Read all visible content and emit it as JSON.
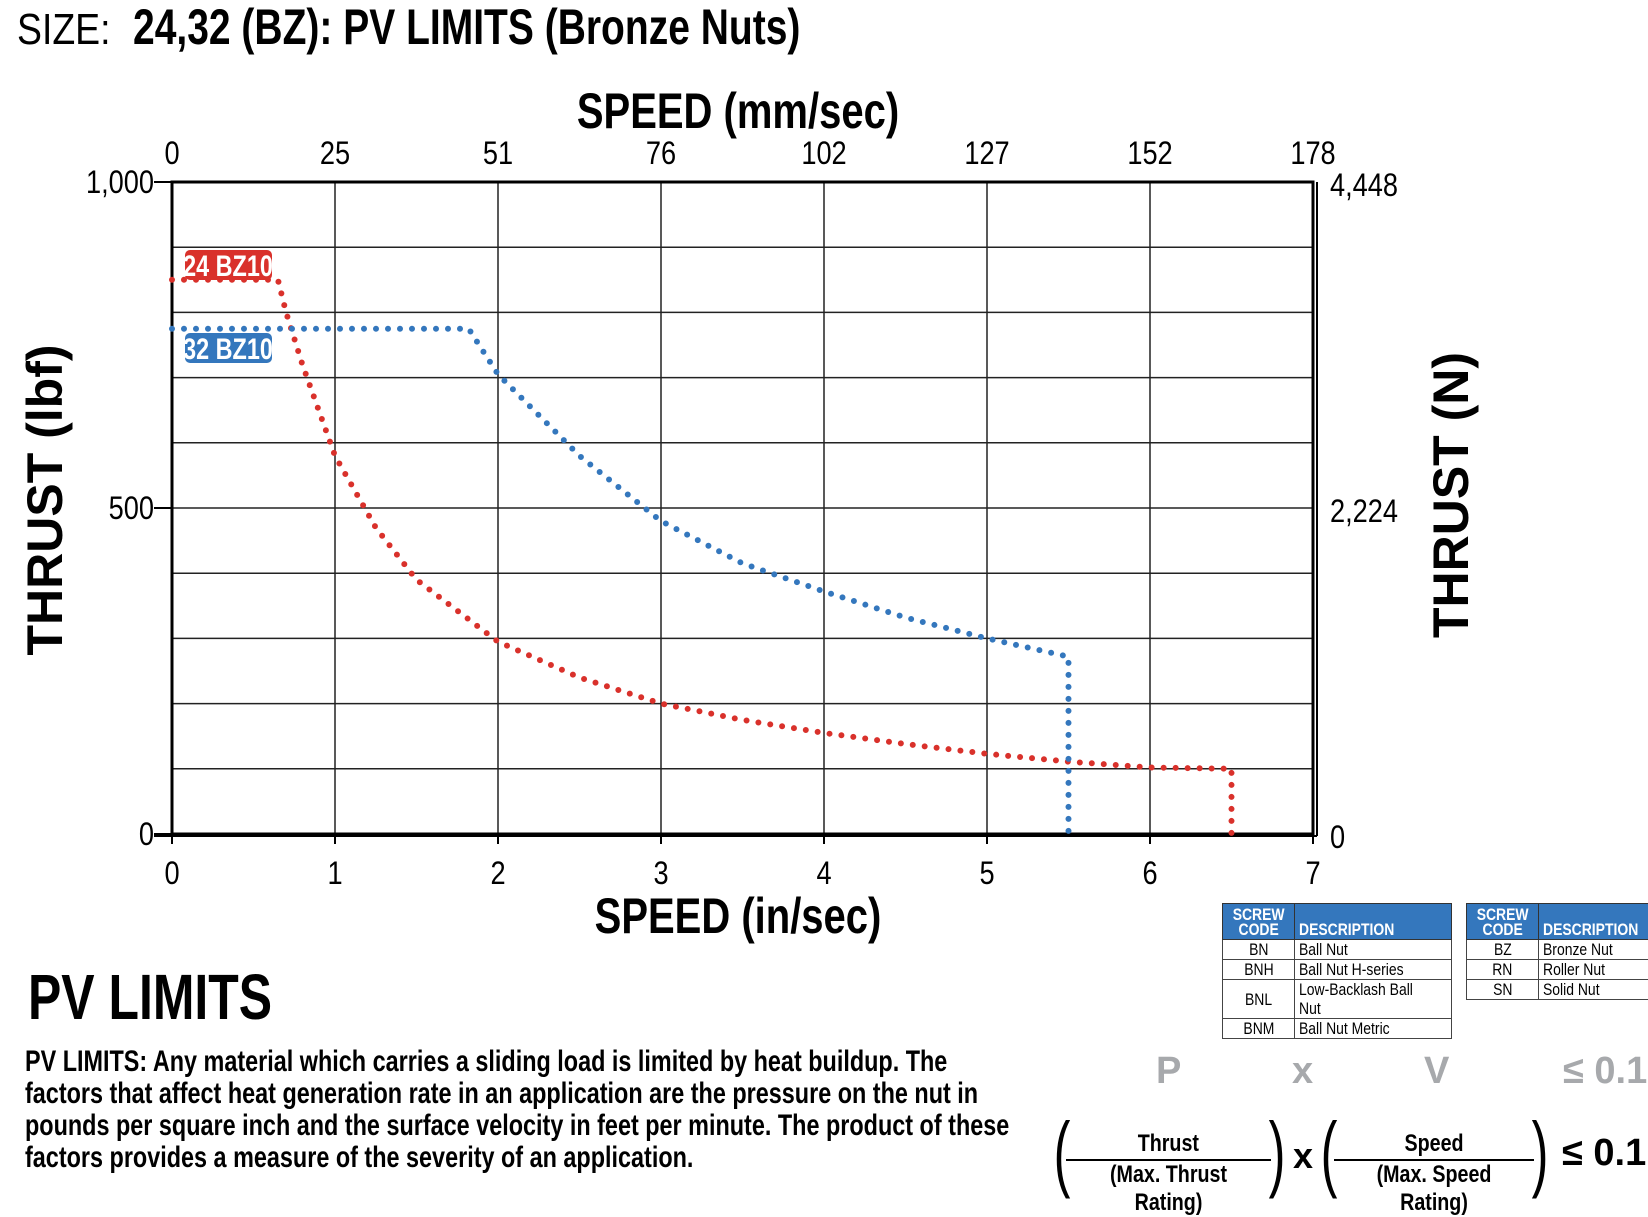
{
  "header": {
    "prefix": "SIZE:",
    "title": "24,32 (BZ): PV LIMITS (Bronze Nuts)"
  },
  "chart_data": {
    "type": "line",
    "title": "24,32 (BZ): PV LIMITS (Bronze Nuts)",
    "xlabel": "SPEED (in/sec)",
    "x2label": "SPEED (mm/sec)",
    "ylabel": "THRUST (lbf)",
    "y2label": "THRUST (N)",
    "xlim": [
      0,
      7
    ],
    "ylim": [
      0,
      1000
    ],
    "x_ticks": [
      "0",
      "1",
      "2",
      "3",
      "4",
      "5",
      "6",
      "7"
    ],
    "x2_ticks": [
      "0",
      "25",
      "51",
      "76",
      "102",
      "127",
      "152",
      "178"
    ],
    "y_ticks": [
      {
        "value": 1000,
        "label": "1,000"
      },
      {
        "value": 500,
        "label": "500"
      },
      {
        "value": 0,
        "label": "0"
      }
    ],
    "y2_ticks": [
      {
        "value": 1000,
        "label": "4,448"
      },
      {
        "value": 500,
        "label": "2,224"
      },
      {
        "value": 0,
        "label": "0"
      }
    ],
    "grid": {
      "x_step": 1,
      "y_step": 100
    },
    "series": [
      {
        "name": "24 BZ10",
        "color": "#d9312b",
        "points": [
          [
            0,
            850
          ],
          [
            0.65,
            850
          ],
          [
            0.7,
            800
          ],
          [
            0.8,
            720
          ],
          [
            1,
            580
          ],
          [
            1.25,
            470
          ],
          [
            1.5,
            390
          ],
          [
            2,
            295
          ],
          [
            2.5,
            240
          ],
          [
            3,
            200
          ],
          [
            3.5,
            175
          ],
          [
            4,
            155
          ],
          [
            4.5,
            138
          ],
          [
            5,
            123
          ],
          [
            5.5,
            111
          ],
          [
            6,
            102
          ],
          [
            6.5,
            100
          ],
          [
            6.5,
            0
          ]
        ]
      },
      {
        "name": "32 BZ10",
        "color": "#3477bd",
        "points": [
          [
            0,
            775
          ],
          [
            1.82,
            775
          ],
          [
            2,
            705
          ],
          [
            2.5,
            580
          ],
          [
            3,
            480
          ],
          [
            3.5,
            415
          ],
          [
            4,
            372
          ],
          [
            4.5,
            332
          ],
          [
            5,
            300
          ],
          [
            5.5,
            272
          ],
          [
            5.5,
            0
          ]
        ]
      }
    ]
  },
  "pv": {
    "heading": "PV LIMITS",
    "paragraph": "PV LIMITS: Any material which carries a sliding load is limited by heat buildup. The factors that affect heat generation rate in an application are the pressure on the nut in pounds per square inch and the surface velocity in feet per minute. The product of these factors provides a measure of the severity of an application."
  },
  "formula": {
    "p": "P",
    "x": "x",
    "v": "V",
    "limit": "≤ 0.1",
    "thrust": "Thrust",
    "max_thrust": "(Max. Thrust Rating)",
    "speed": "Speed",
    "max_speed": "(Max. Speed Rating)",
    "times": "x",
    "limit2": "≤ 0.1"
  },
  "tables": [
    {
      "headers": [
        "SCREW CODE",
        "DESCRIPTION"
      ],
      "header_line1": "SCREW",
      "header_line2": "CODE",
      "rows": [
        [
          "BN",
          "Ball Nut"
        ],
        [
          "BNH",
          "Ball Nut H-series"
        ],
        [
          "BNL",
          "Low-Backlash Ball Nut"
        ],
        [
          "BNM",
          "Ball Nut Metric"
        ]
      ]
    },
    {
      "headers": [
        "SCREW CODE",
        "DESCRIPTION"
      ],
      "header_line1": "SCREW",
      "header_line2": "CODE",
      "rows": [
        [
          "BZ",
          "Bronze Nut"
        ],
        [
          "RN",
          "Roller Nut"
        ],
        [
          "SN",
          "Solid Nut"
        ]
      ]
    }
  ]
}
